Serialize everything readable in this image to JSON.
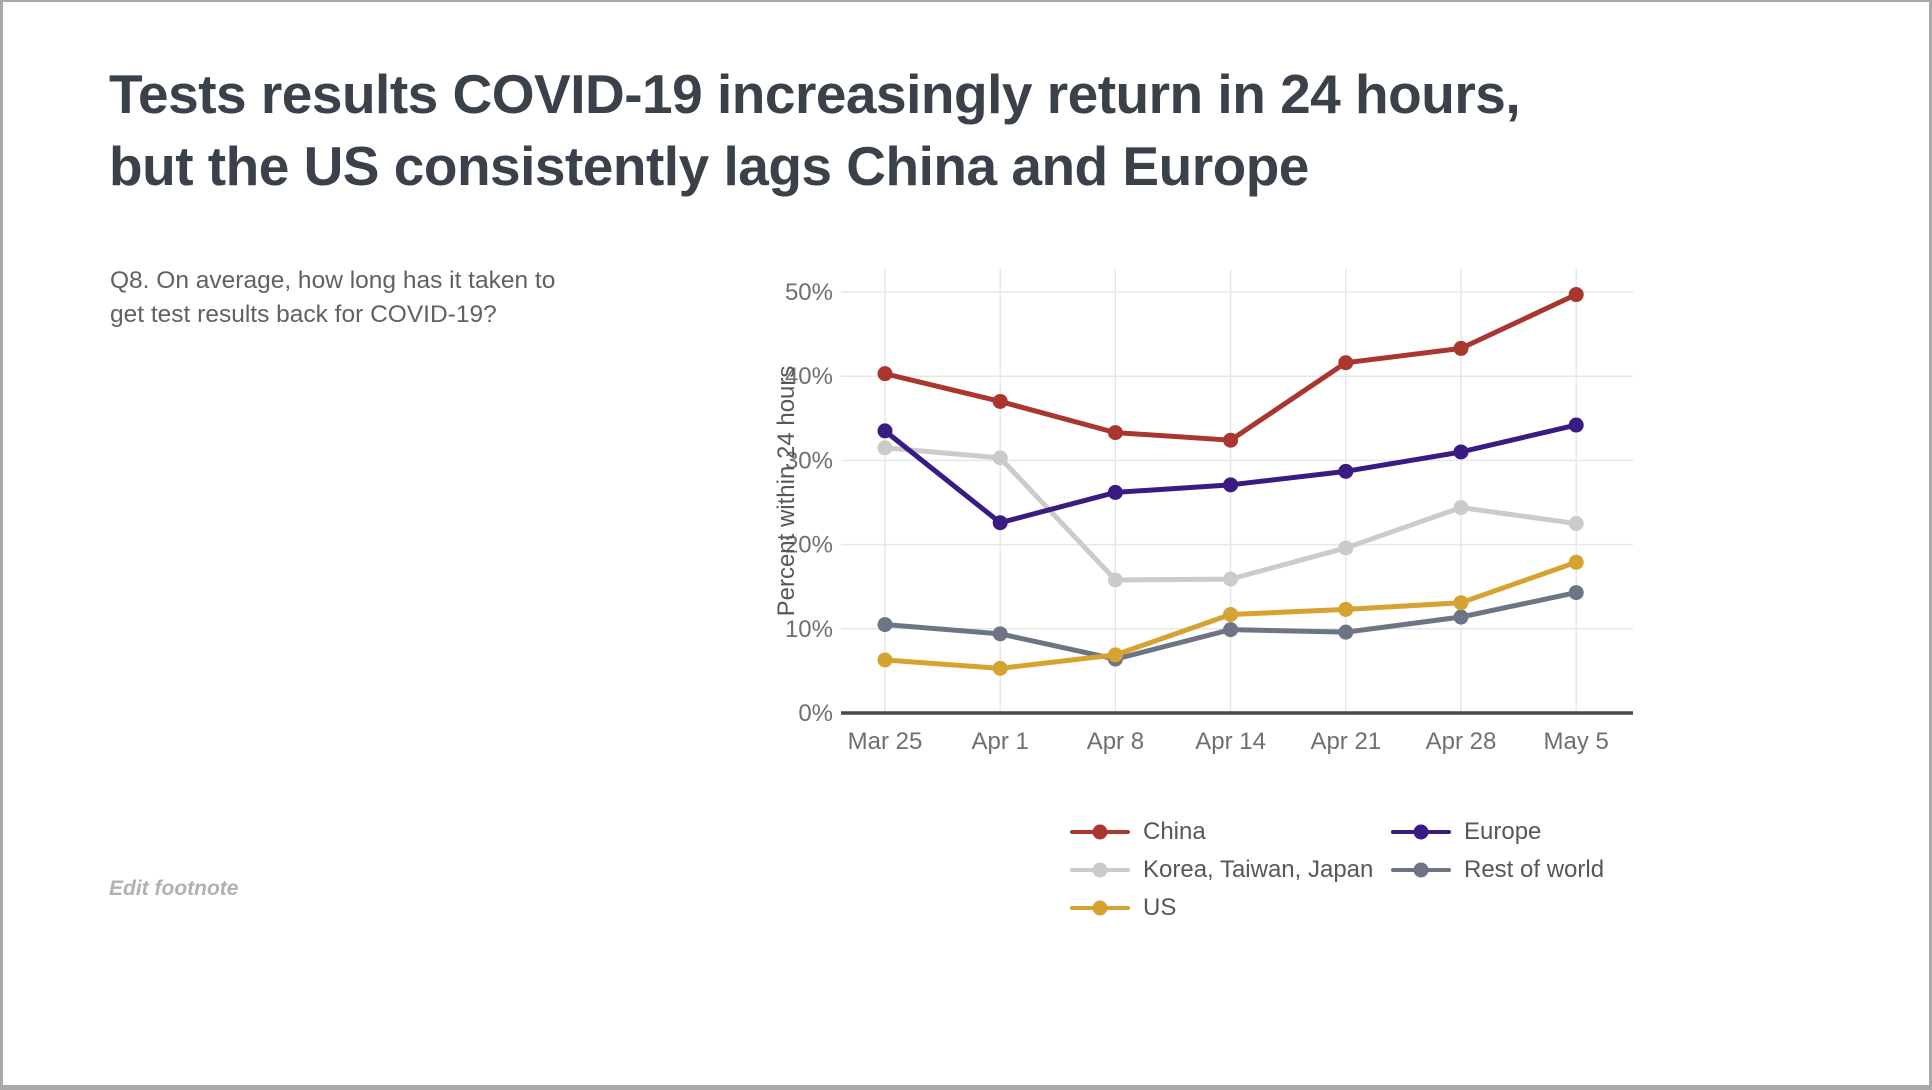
{
  "page": {
    "title_line1": "Tests results COVID-19 increasingly return in 24 hours,",
    "title_line2": "but the US consistently lags China and Europe",
    "subtitle": "Q8. On average, how long has it taken to get test results back for COVID-19?",
    "footnote": "Edit footnote"
  },
  "chart_data": {
    "type": "line",
    "title": "",
    "xlabel": "",
    "ylabel": "Percent within 24 hours",
    "x_ticks": [
      "Mar 25",
      "Apr 1",
      "Apr 8",
      "Apr 14",
      "Apr 21",
      "Apr 28",
      "May 5"
    ],
    "y_ticks": [
      "0%",
      "10%",
      "20%",
      "30%",
      "40%",
      "50%"
    ],
    "ylim": [
      0,
      50
    ],
    "grid": true,
    "legend_position": "bottom",
    "series": [
      {
        "name": "China",
        "color": "#a9362f",
        "values": [
          40.3,
          37.0,
          33.3,
          32.4,
          41.6,
          43.3,
          49.7
        ]
      },
      {
        "name": "Europe",
        "color": "#3a1b82",
        "values": [
          33.5,
          22.6,
          26.2,
          27.1,
          28.7,
          31.0,
          34.2
        ]
      },
      {
        "name": "Korea, Taiwan, Japan",
        "color": "#cccbca",
        "values": [
          31.5,
          30.3,
          15.8,
          15.9,
          19.6,
          24.4,
          22.5
        ]
      },
      {
        "name": "Rest of world",
        "color": "#6d7485",
        "values": [
          10.5,
          9.4,
          6.4,
          9.9,
          9.6,
          11.4,
          14.3
        ]
      },
      {
        "name": "US",
        "color": "#d6a231",
        "values": [
          6.3,
          5.3,
          6.9,
          11.7,
          12.3,
          13.1,
          17.9
        ]
      }
    ],
    "draw_order": [
      2,
      3,
      1,
      0,
      4
    ],
    "legend_columns": [
      [
        0,
        2,
        4
      ],
      [
        1,
        3
      ]
    ]
  },
  "style": {
    "grid_color": "#e7e7e7",
    "axis_line_color": "#47484c",
    "tick_label_color": "#6f6f6f",
    "axis_title_color": "#55575b"
  }
}
